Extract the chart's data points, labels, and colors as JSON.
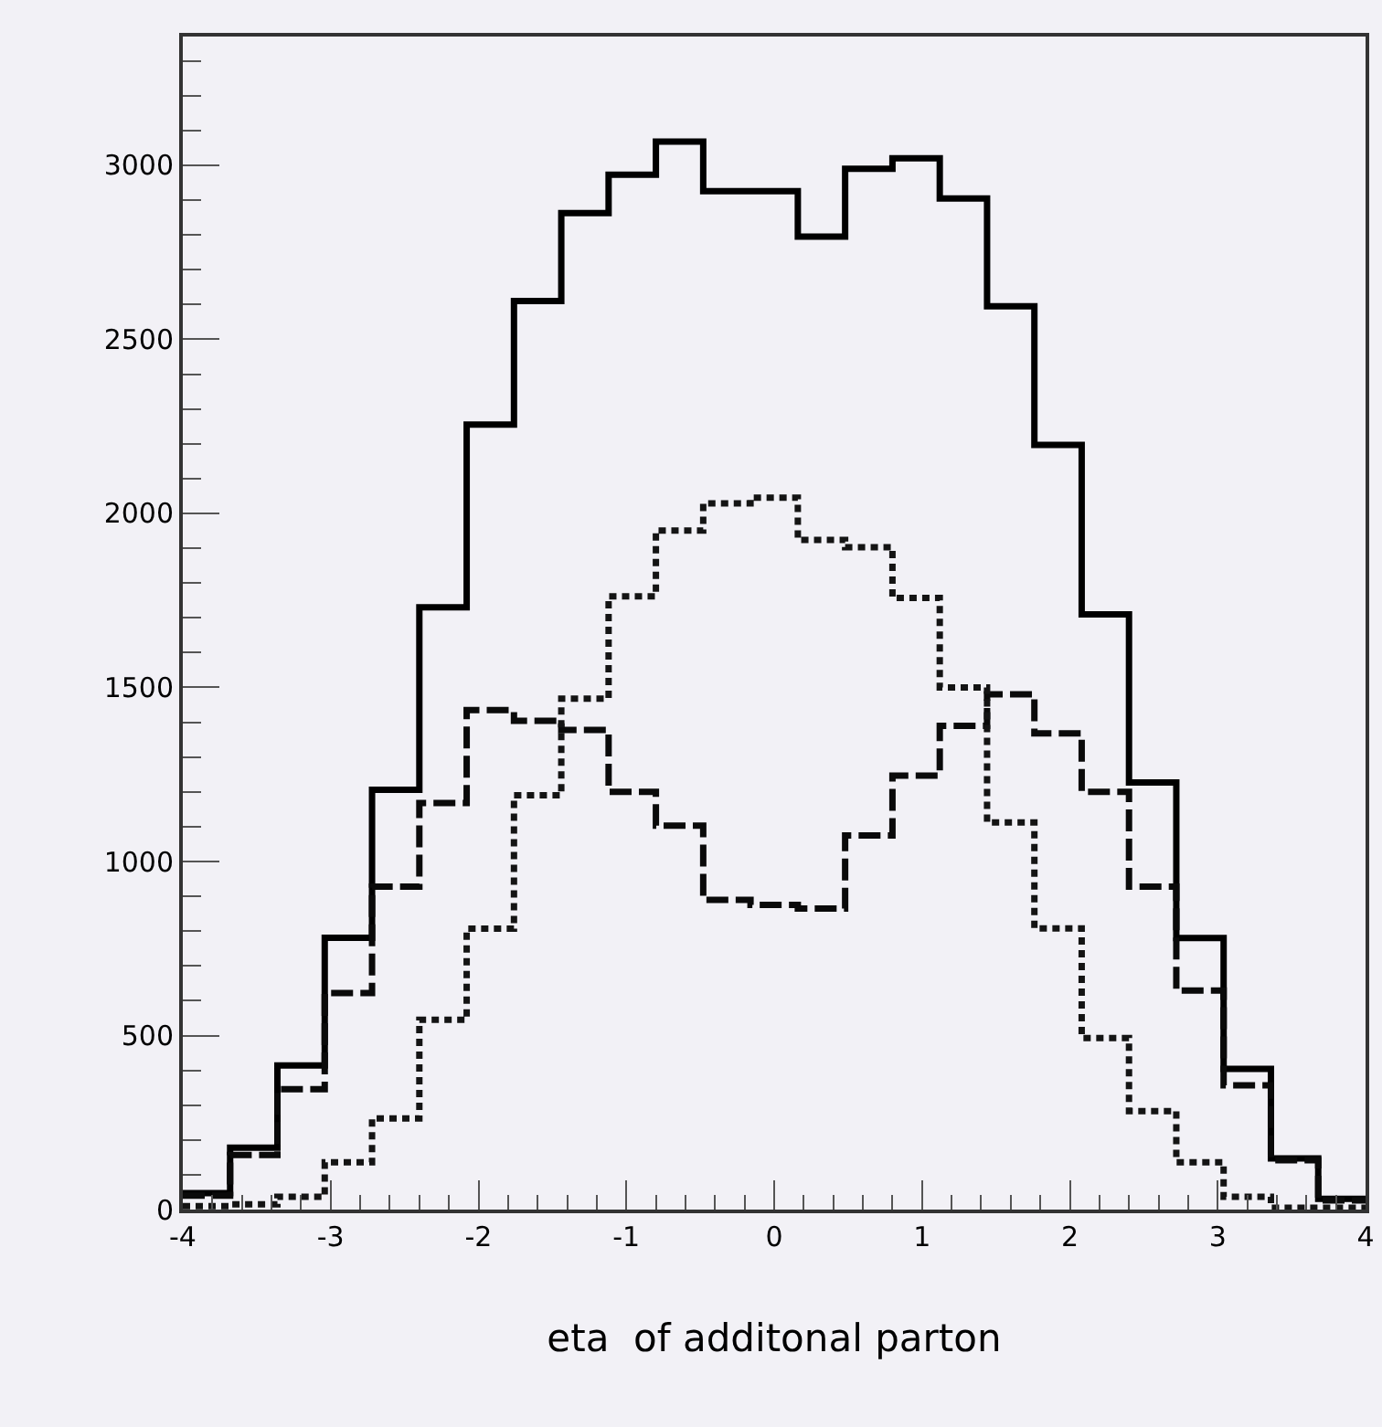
{
  "chart_data": {
    "type": "histogram",
    "xlabel": "eta  of additonal parton",
    "bins": [
      -4,
      -3.68,
      -3.36,
      -3.04,
      -2.72,
      -2.4,
      -2.08,
      -1.76,
      -1.44,
      -1.12,
      -0.8,
      -0.48,
      -0.16,
      0.16,
      0.48,
      0.8,
      1.12,
      1.44,
      1.76,
      2.08,
      2.4,
      2.72,
      3.04,
      3.36,
      3.68,
      4
    ],
    "series": [
      {
        "color": "#000000",
        "line_style": "solid",
        "values": [
          47,
          178,
          414,
          781,
          1206,
          1730,
          2255,
          2610,
          2863,
          2973,
          3068,
          2926,
          2926,
          2795,
          2990,
          3020,
          2905,
          2595,
          2197,
          1710,
          1227,
          780,
          404,
          147,
          31
        ]
      },
      {
        "color": "#0a0a0a",
        "line_style": "dashed",
        "values": [
          40,
          157,
          346,
          622,
          928,
          1168,
          1435,
          1404,
          1378,
          1200,
          1103,
          890,
          875,
          865,
          1075,
          1247,
          1390,
          1480,
          1368,
          1200,
          928,
          629,
          357,
          142,
          26
        ]
      },
      {
        "color": "#141414",
        "line_style": "dotted",
        "values": [
          10,
          15,
          37,
          136,
          262,
          545,
          807,
          1190,
          1468,
          1762,
          1951,
          2029,
          2045,
          1924,
          1903,
          1757,
          1500,
          1112,
          808,
          493,
          283,
          136,
          37,
          5,
          5
        ]
      }
    ],
    "xlim": [
      -4,
      4
    ],
    "xticks": [
      -4,
      -3,
      -2,
      -1,
      0,
      1,
      2,
      3,
      4
    ],
    "ylim": [
      0,
      3370
    ],
    "yticks": [
      0,
      500,
      1000,
      1500,
      2000,
      2500,
      3000
    ],
    "grid": false
  }
}
